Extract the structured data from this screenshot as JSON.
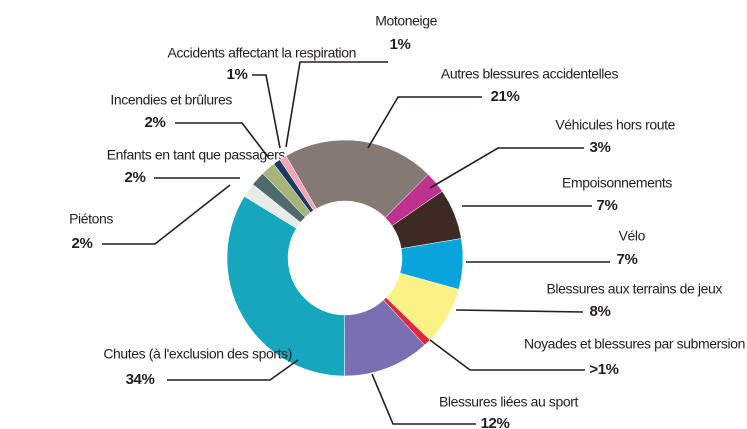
{
  "chart_data": {
    "type": "pie",
    "categories": [
      "Autres blessures accidentelles",
      "Véhicules hors route",
      "Empoisonnements",
      "Vélo",
      "Blessures aux terrains de jeux",
      "Noyades et blessures par submersion",
      "Blessures liées au sport",
      "Chutes (à l'exclusion des sports)",
      "Piétons",
      "Enfants en tant que passagers",
      "Incendies et brûlures",
      "Accidents affectant la respiration",
      "Motoneige"
    ],
    "values": [
      21,
      3,
      7,
      7,
      8,
      1,
      12,
      34,
      2,
      2,
      2,
      1,
      1
    ],
    "value_labels": [
      "21%",
      "3%",
      "7%",
      "7%",
      "8%",
      ">1%",
      "12%",
      "34%",
      "2%",
      "2%",
      "2%",
      "1%",
      "1%"
    ],
    "colors": [
      "#857a73",
      "#c0308f",
      "#3d2a25",
      "#0aa4dc",
      "#fbf286",
      "#e2293b",
      "#7b6fb3",
      "#16a7be",
      "#e6ebe7",
      "#4f6a6b",
      "#a6b37a",
      "#1c3b63",
      "#f2a5b2"
    ]
  }
}
